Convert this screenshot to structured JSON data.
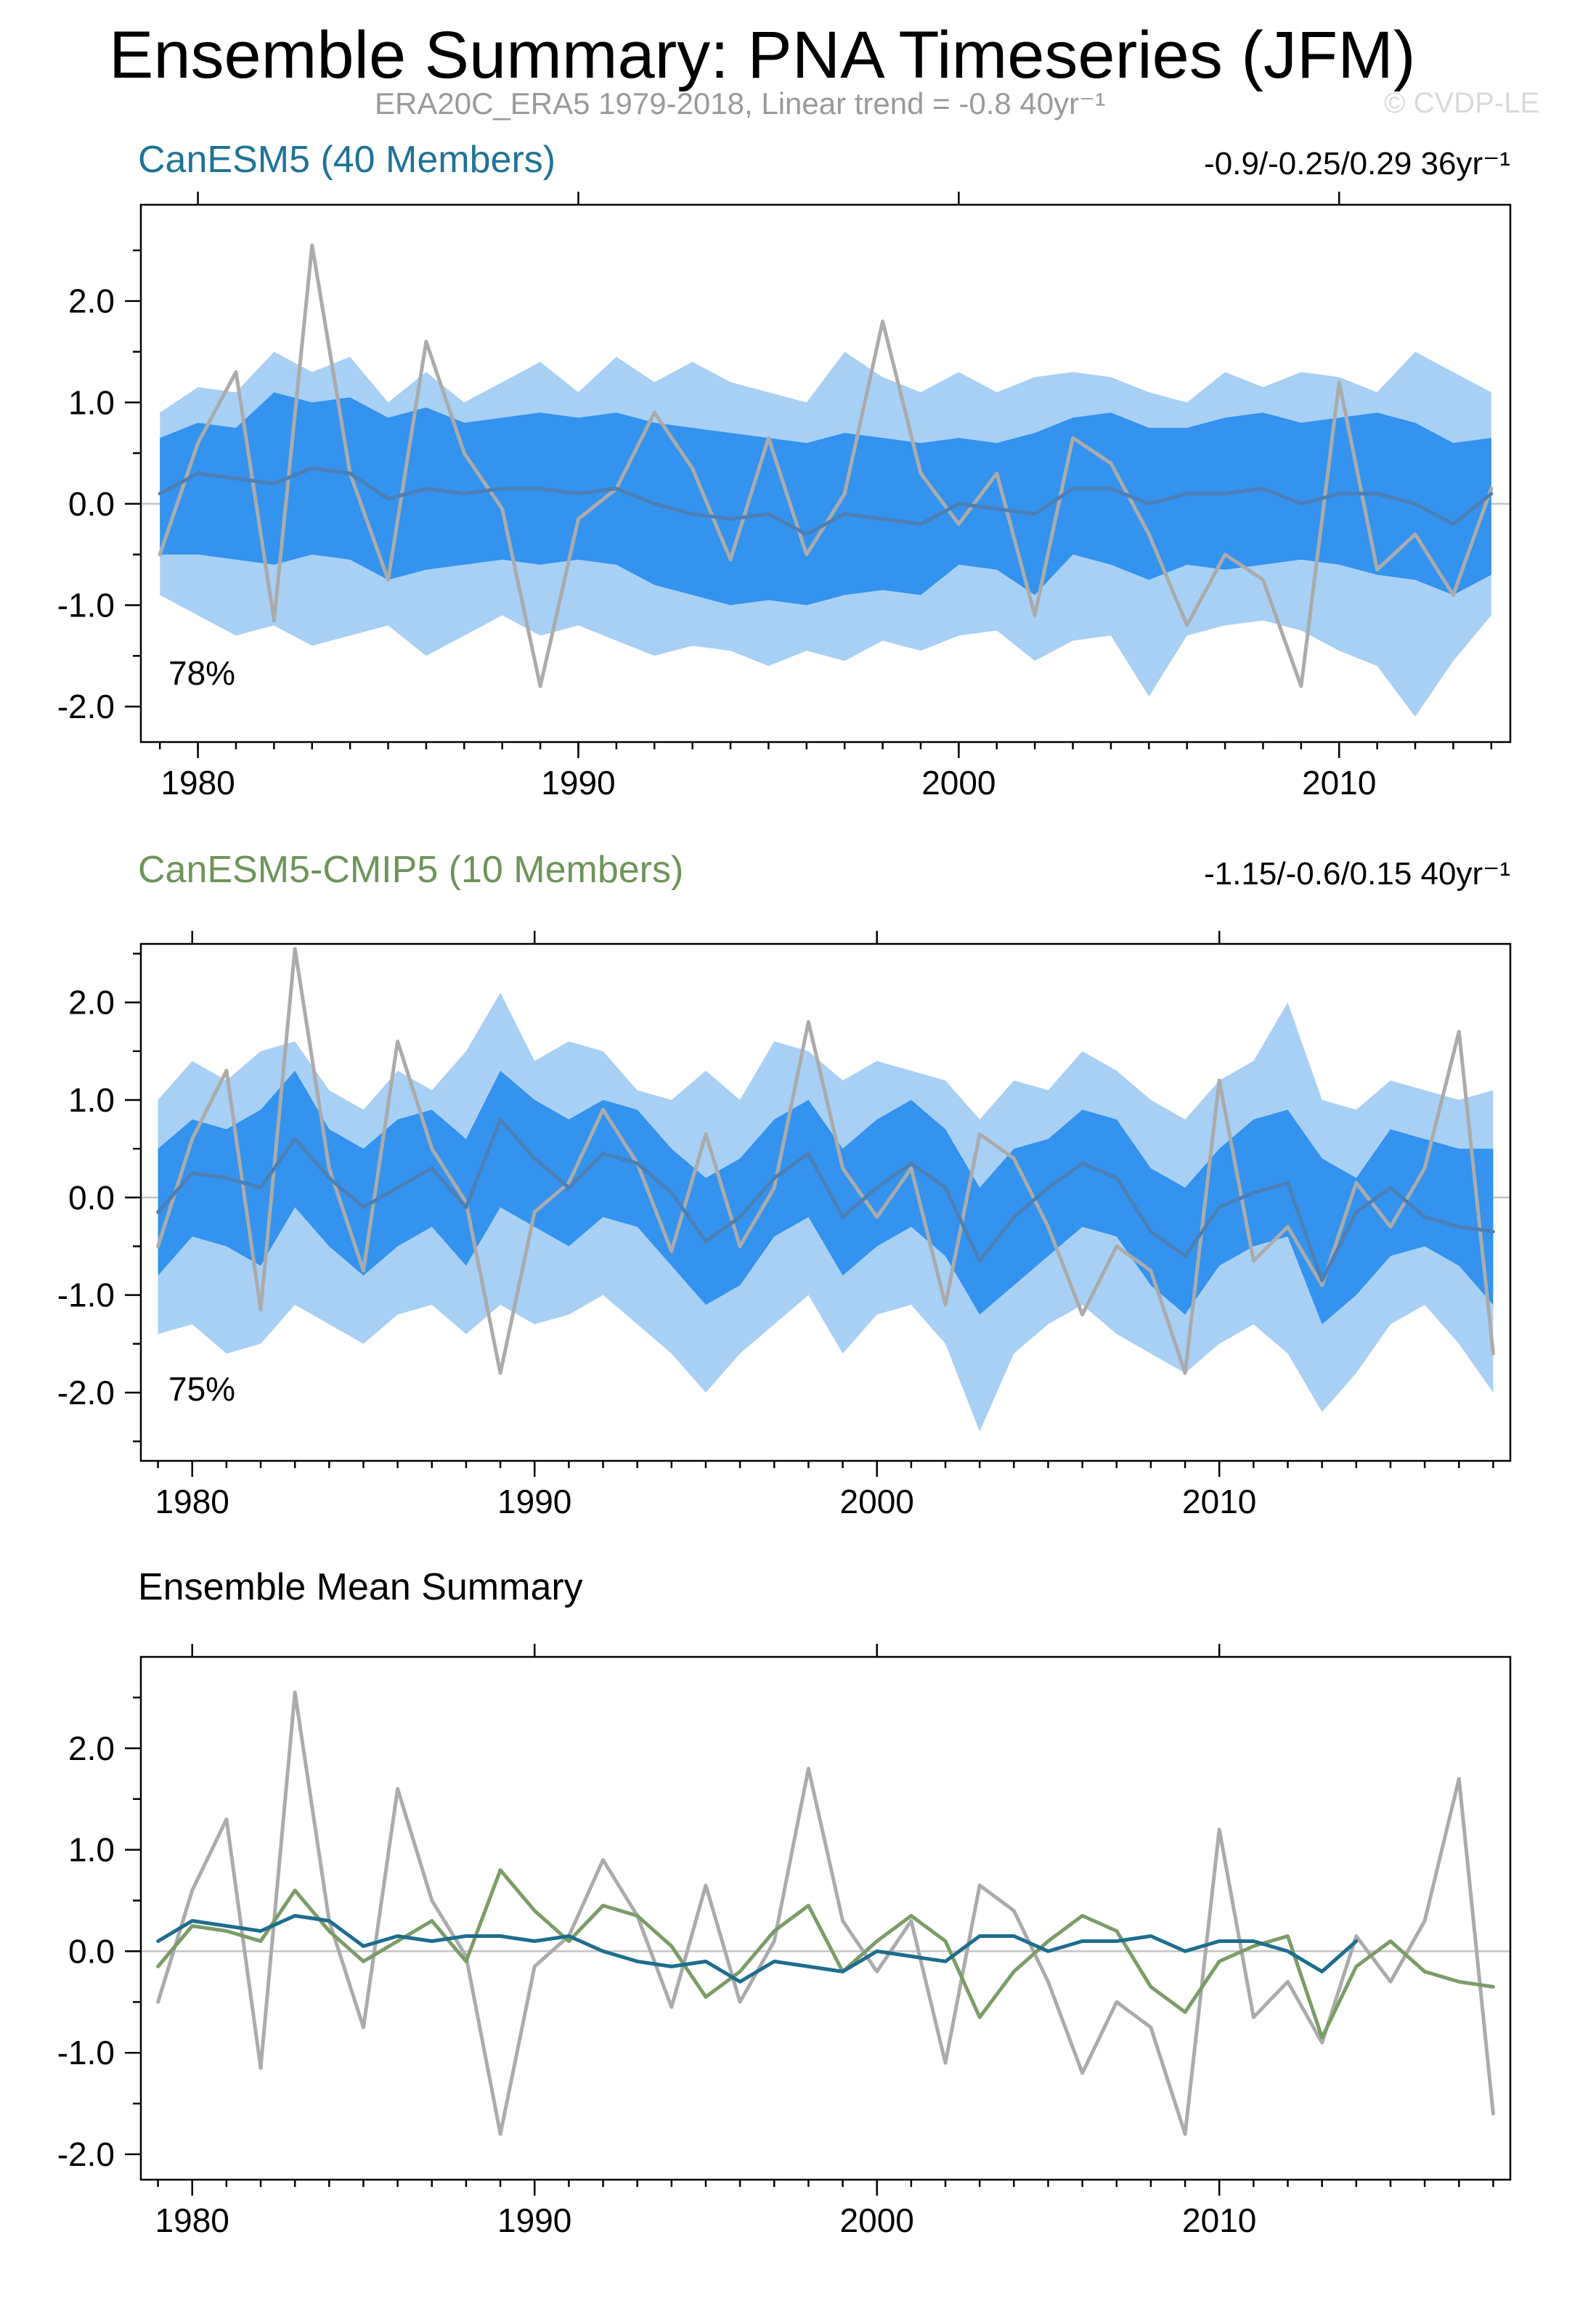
{
  "page": {
    "title": "Ensemble Summary: PNA Timeseries (JFM)",
    "subtitle": "ERA20C_ERA5 1979-2018, Linear trend = -0.8 40yr⁻¹",
    "watermark": "© CVDP-LE"
  },
  "colors": {
    "band_outer": "#a8d0f5",
    "band_inner": "#3393ee",
    "mean_line": "#4c7fb5",
    "obs_line": "#ababab",
    "canesm5_line": "#1d6d8f",
    "cmip5_line": "#7b9c67",
    "canesm5_accent": "#1f7396",
    "cmip5_accent": "#6f9459",
    "heading_black": "#000000",
    "zero_line": "#c4c4c4",
    "subtitle_gray": "#9a9a9a",
    "watermark_gray": "#d9d9d9",
    "axis_black": "#000000"
  },
  "chart_data": [
    {
      "id": "canesm5",
      "type": "area",
      "heading": "CanESM5 (40 Members)",
      "trend_label": "-0.9/-0.25/0.29 36yr⁻¹",
      "agreement_label": "78%",
      "legend": "none",
      "grid": false,
      "xlim": [
        1978.5,
        2014.5
      ],
      "ylim": [
        -2.35,
        2.95
      ],
      "xticks": [
        1980,
        1990,
        2000,
        2010
      ],
      "xtick_labels": [
        "1980",
        "1990",
        "2000",
        "2010"
      ],
      "x_minor_step": 1,
      "yticks": [
        -2,
        -1,
        0,
        1,
        2
      ],
      "ytick_labels": [
        "-2.0",
        "-1.0",
        "0.0",
        "1.0",
        "2.0"
      ],
      "y_minor_step": 0.5,
      "x": [
        1979,
        1980,
        1981,
        1982,
        1983,
        1984,
        1985,
        1986,
        1987,
        1988,
        1989,
        1990,
        1991,
        1992,
        1993,
        1994,
        1995,
        1996,
        1997,
        1998,
        1999,
        2000,
        2001,
        2002,
        2003,
        2004,
        2005,
        2006,
        2007,
        2008,
        2009,
        2010,
        2011,
        2012,
        2013,
        2014
      ],
      "series": [
        {
          "name": "ensemble-spread-outer",
          "kind": "band",
          "color_key": "band_outer",
          "upper": [
            0.9,
            1.15,
            1.1,
            1.5,
            1.3,
            1.45,
            1.0,
            1.3,
            1.0,
            1.2,
            1.4,
            1.1,
            1.45,
            1.2,
            1.4,
            1.2,
            1.1,
            1.0,
            1.5,
            1.25,
            1.1,
            1.3,
            1.1,
            1.25,
            1.3,
            1.25,
            1.1,
            1.0,
            1.3,
            1.15,
            1.3,
            1.25,
            1.1,
            1.5,
            1.3,
            1.1
          ],
          "lower": [
            -0.9,
            -1.1,
            -1.3,
            -1.2,
            -1.4,
            -1.3,
            -1.2,
            -1.5,
            -1.3,
            -1.1,
            -1.3,
            -1.2,
            -1.35,
            -1.5,
            -1.4,
            -1.45,
            -1.6,
            -1.45,
            -1.55,
            -1.35,
            -1.45,
            -1.3,
            -1.25,
            -1.55,
            -1.35,
            -1.3,
            -1.9,
            -1.3,
            -1.2,
            -1.15,
            -1.25,
            -1.45,
            -1.6,
            -2.1,
            -1.55,
            -1.1
          ]
        },
        {
          "name": "ensemble-spread-inner",
          "kind": "band",
          "color_key": "band_inner",
          "upper": [
            0.65,
            0.8,
            0.75,
            1.1,
            1.0,
            1.05,
            0.85,
            0.95,
            0.8,
            0.85,
            0.9,
            0.85,
            0.9,
            0.8,
            0.75,
            0.7,
            0.65,
            0.6,
            0.7,
            0.65,
            0.6,
            0.65,
            0.6,
            0.7,
            0.85,
            0.9,
            0.75,
            0.75,
            0.85,
            0.9,
            0.8,
            0.85,
            0.9,
            0.8,
            0.6,
            0.65
          ],
          "lower": [
            -0.5,
            -0.5,
            -0.55,
            -0.6,
            -0.5,
            -0.55,
            -0.75,
            -0.65,
            -0.6,
            -0.55,
            -0.6,
            -0.55,
            -0.6,
            -0.8,
            -0.9,
            -1.0,
            -0.95,
            -1.0,
            -0.9,
            -0.85,
            -0.9,
            -0.6,
            -0.65,
            -0.9,
            -0.5,
            -0.6,
            -0.75,
            -0.6,
            -0.65,
            -0.6,
            -0.55,
            -0.6,
            -0.7,
            -0.75,
            -0.9,
            -0.7
          ]
        },
        {
          "name": "observations",
          "kind": "line",
          "color_key": "obs_line",
          "width": 5,
          "values": [
            -0.5,
            0.6,
            1.3,
            -1.15,
            2.55,
            0.3,
            -0.75,
            1.6,
            0.5,
            -0.05,
            -1.8,
            -0.15,
            0.15,
            0.9,
            0.35,
            -0.55,
            0.65,
            -0.5,
            0.1,
            1.8,
            0.3,
            -0.2,
            0.3,
            -1.1,
            0.65,
            0.4,
            -0.3,
            -1.2,
            -0.5,
            -0.75,
            -1.8,
            1.2,
            -0.65,
            -0.3,
            -0.9,
            0.15
          ]
        },
        {
          "name": "ensemble-mean",
          "kind": "line",
          "color_key": "mean_line",
          "width": 5,
          "values": [
            0.1,
            0.3,
            0.25,
            0.2,
            0.35,
            0.3,
            0.05,
            0.15,
            0.1,
            0.15,
            0.15,
            0.1,
            0.15,
            0.0,
            -0.1,
            -0.15,
            -0.1,
            -0.3,
            -0.1,
            -0.15,
            -0.2,
            0.0,
            -0.05,
            -0.1,
            0.15,
            0.15,
            0.0,
            0.1,
            0.1,
            0.15,
            0.0,
            0.1,
            0.1,
            0.0,
            -0.2,
            0.1
          ]
        }
      ]
    },
    {
      "id": "canesm5-cmip5",
      "type": "area",
      "heading": "CanESM5-CMIP5 (10 Members)",
      "trend_label": "-1.15/-0.6/0.15 40yr⁻¹",
      "agreement_label": "75%",
      "legend": "none",
      "grid": false,
      "xlim": [
        1978.5,
        2018.5
      ],
      "ylim": [
        -2.7,
        2.6
      ],
      "xticks": [
        1980,
        1990,
        2000,
        2010
      ],
      "xtick_labels": [
        "1980",
        "1990",
        "2000",
        "2010"
      ],
      "x_minor_step": 1,
      "yticks": [
        -2,
        -1,
        0,
        1,
        2
      ],
      "ytick_labels": [
        "-2.0",
        "-1.0",
        "0.0",
        "1.0",
        "2.0"
      ],
      "y_minor_step": 0.5,
      "x": [
        1979,
        1980,
        1981,
        1982,
        1983,
        1984,
        1985,
        1986,
        1987,
        1988,
        1989,
        1990,
        1991,
        1992,
        1993,
        1994,
        1995,
        1996,
        1997,
        1998,
        1999,
        2000,
        2001,
        2002,
        2003,
        2004,
        2005,
        2006,
        2007,
        2008,
        2009,
        2010,
        2011,
        2012,
        2013,
        2014,
        2015,
        2016,
        2017,
        2018
      ],
      "series": [
        {
          "name": "ensemble-spread-outer",
          "kind": "band",
          "color_key": "band_outer",
          "upper": [
            1.0,
            1.4,
            1.2,
            1.5,
            1.6,
            1.1,
            0.9,
            1.3,
            1.1,
            1.5,
            2.1,
            1.4,
            1.6,
            1.5,
            1.1,
            1.0,
            1.3,
            1.0,
            1.6,
            1.5,
            1.2,
            1.4,
            1.3,
            1.2,
            0.8,
            1.2,
            1.1,
            1.5,
            1.3,
            1.0,
            0.8,
            1.2,
            1.4,
            2.0,
            1.0,
            0.9,
            1.2,
            1.1,
            1.0,
            1.1
          ],
          "lower": [
            -1.4,
            -1.3,
            -1.6,
            -1.5,
            -1.1,
            -1.3,
            -1.5,
            -1.2,
            -1.1,
            -1.4,
            -1.1,
            -1.3,
            -1.2,
            -1.0,
            -1.3,
            -1.6,
            -2.0,
            -1.6,
            -1.3,
            -1.0,
            -1.6,
            -1.2,
            -1.1,
            -1.5,
            -2.4,
            -1.6,
            -1.3,
            -1.1,
            -1.4,
            -1.6,
            -1.8,
            -1.5,
            -1.3,
            -1.6,
            -2.2,
            -1.8,
            -1.3,
            -1.1,
            -1.5,
            -2.0
          ]
        },
        {
          "name": "ensemble-spread-inner",
          "kind": "band",
          "color_key": "band_inner",
          "upper": [
            0.5,
            0.8,
            0.7,
            0.9,
            1.3,
            0.7,
            0.5,
            0.8,
            0.9,
            0.6,
            1.3,
            1.0,
            0.8,
            1.0,
            0.9,
            0.5,
            0.2,
            0.4,
            0.8,
            1.0,
            0.5,
            0.8,
            1.0,
            0.7,
            0.1,
            0.5,
            0.6,
            0.9,
            0.8,
            0.3,
            0.1,
            0.5,
            0.8,
            0.9,
            0.4,
            0.2,
            0.7,
            0.6,
            0.5,
            0.5
          ],
          "lower": [
            -0.8,
            -0.4,
            -0.5,
            -0.7,
            -0.1,
            -0.5,
            -0.8,
            -0.5,
            -0.3,
            -0.7,
            -0.1,
            -0.3,
            -0.5,
            -0.2,
            -0.3,
            -0.7,
            -1.1,
            -0.9,
            -0.4,
            -0.2,
            -0.8,
            -0.5,
            -0.3,
            -0.6,
            -1.2,
            -0.9,
            -0.6,
            -0.3,
            -0.4,
            -0.9,
            -1.2,
            -0.7,
            -0.5,
            -0.4,
            -1.3,
            -1.0,
            -0.6,
            -0.5,
            -0.7,
            -1.1
          ]
        },
        {
          "name": "observations",
          "kind": "line",
          "color_key": "obs_line",
          "width": 5,
          "values": [
            -0.5,
            0.6,
            1.3,
            -1.15,
            2.55,
            0.3,
            -0.75,
            1.6,
            0.5,
            -0.05,
            -1.8,
            -0.15,
            0.15,
            0.9,
            0.35,
            -0.55,
            0.65,
            -0.5,
            0.1,
            1.8,
            0.3,
            -0.2,
            0.3,
            -1.1,
            0.65,
            0.4,
            -0.3,
            -1.2,
            -0.5,
            -0.75,
            -1.8,
            1.2,
            -0.65,
            -0.3,
            -0.9,
            0.15,
            -0.3,
            0.3,
            1.7,
            -1.6
          ]
        },
        {
          "name": "ensemble-mean",
          "kind": "line",
          "color_key": "mean_line",
          "width": 5,
          "values": [
            -0.15,
            0.25,
            0.2,
            0.1,
            0.6,
            0.2,
            -0.1,
            0.1,
            0.3,
            -0.1,
            0.8,
            0.4,
            0.1,
            0.45,
            0.35,
            0.05,
            -0.45,
            -0.2,
            0.2,
            0.45,
            -0.2,
            0.1,
            0.35,
            0.1,
            -0.65,
            -0.2,
            0.1,
            0.35,
            0.2,
            -0.35,
            -0.6,
            -0.1,
            0.05,
            0.15,
            -0.85,
            -0.15,
            0.1,
            -0.2,
            -0.3,
            -0.35
          ]
        }
      ]
    },
    {
      "id": "ensemble-mean-summary",
      "type": "line",
      "heading": "Ensemble Mean Summary",
      "trend_label": "",
      "agreement_label": "",
      "legend": "none",
      "grid": false,
      "xlim": [
        1978.5,
        2018.5
      ],
      "ylim": [
        -2.25,
        2.9
      ],
      "xticks": [
        1980,
        1990,
        2000,
        2010
      ],
      "xtick_labels": [
        "1980",
        "1990",
        "2000",
        "2010"
      ],
      "x_minor_step": 1,
      "yticks": [
        -2,
        -1,
        0,
        1,
        2
      ],
      "ytick_labels": [
        "-2.0",
        "-1.0",
        "0.0",
        "1.0",
        "2.0"
      ],
      "y_minor_step": 0.5,
      "x": [
        1979,
        1980,
        1981,
        1982,
        1983,
        1984,
        1985,
        1986,
        1987,
        1988,
        1989,
        1990,
        1991,
        1992,
        1993,
        1994,
        1995,
        1996,
        1997,
        1998,
        1999,
        2000,
        2001,
        2002,
        2003,
        2004,
        2005,
        2006,
        2007,
        2008,
        2009,
        2010,
        2011,
        2012,
        2013,
        2014,
        2015,
        2016,
        2017,
        2018
      ],
      "series": [
        {
          "name": "observations",
          "kind": "line",
          "color_key": "obs_line",
          "width": 5,
          "values": [
            -0.5,
            0.6,
            1.3,
            -1.15,
            2.55,
            0.3,
            -0.75,
            1.6,
            0.5,
            -0.05,
            -1.8,
            -0.15,
            0.15,
            0.9,
            0.35,
            -0.55,
            0.65,
            -0.5,
            0.1,
            1.8,
            0.3,
            -0.2,
            0.3,
            -1.1,
            0.65,
            0.4,
            -0.3,
            -1.2,
            -0.5,
            -0.75,
            -1.8,
            1.2,
            -0.65,
            -0.3,
            -0.9,
            0.15,
            -0.3,
            0.3,
            1.7,
            -1.6
          ]
        },
        {
          "name": "canesm5-cmip5-ensemble-mean",
          "kind": "line",
          "color_key": "cmip5_line",
          "width": 5,
          "values": [
            -0.15,
            0.25,
            0.2,
            0.1,
            0.6,
            0.2,
            -0.1,
            0.1,
            0.3,
            -0.1,
            0.8,
            0.4,
            0.1,
            0.45,
            0.35,
            0.05,
            -0.45,
            -0.2,
            0.2,
            0.45,
            -0.2,
            0.1,
            0.35,
            0.1,
            -0.65,
            -0.2,
            0.1,
            0.35,
            0.2,
            -0.35,
            -0.6,
            -0.1,
            0.05,
            0.15,
            -0.85,
            -0.15,
            0.1,
            -0.2,
            -0.3,
            -0.35
          ]
        },
        {
          "name": "canesm5-ensemble-mean",
          "kind": "line",
          "color_key": "canesm5_line",
          "width": 5,
          "x": [
            1979,
            1980,
            1981,
            1982,
            1983,
            1984,
            1985,
            1986,
            1987,
            1988,
            1989,
            1990,
            1991,
            1992,
            1993,
            1994,
            1995,
            1996,
            1997,
            1998,
            1999,
            2000,
            2001,
            2002,
            2003,
            2004,
            2005,
            2006,
            2007,
            2008,
            2009,
            2010,
            2011,
            2012,
            2013,
            2014
          ],
          "values": [
            0.1,
            0.3,
            0.25,
            0.2,
            0.35,
            0.3,
            0.05,
            0.15,
            0.1,
            0.15,
            0.15,
            0.1,
            0.15,
            0.0,
            -0.1,
            -0.15,
            -0.1,
            -0.3,
            -0.1,
            -0.15,
            -0.2,
            0.0,
            -0.05,
            -0.1,
            0.15,
            0.15,
            0.0,
            0.1,
            0.1,
            0.15,
            0.0,
            0.1,
            0.1,
            0.0,
            -0.2,
            0.1
          ]
        }
      ]
    }
  ]
}
